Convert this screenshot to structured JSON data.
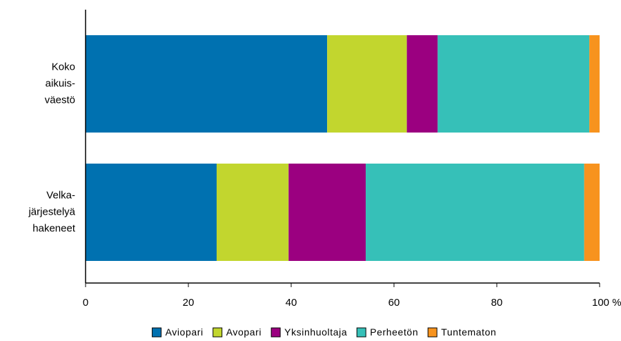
{
  "chart_data": {
    "type": "bar",
    "orientation": "horizontal",
    "stacked": true,
    "categories": [
      [
        "Koko",
        "aikuis-",
        "väestö"
      ],
      [
        "Velka-",
        "järjestelyä",
        "hakeneet"
      ]
    ],
    "series": [
      {
        "name": "Aviopari",
        "color": "#0071b0",
        "values": [
          47,
          25.5
        ]
      },
      {
        "name": "Avopari",
        "color": "#c2d62e",
        "values": [
          15.5,
          14
        ]
      },
      {
        "name": "Yksinhuoltaja",
        "color": "#9b0080",
        "values": [
          6,
          15
        ]
      },
      {
        "name": "Perheetön",
        "color": "#36c0b8",
        "values": [
          29.5,
          42.5
        ]
      },
      {
        "name": "Tuntematon",
        "color": "#f7931e",
        "values": [
          2,
          3
        ]
      }
    ],
    "xlim": [
      0,
      100
    ],
    "xticks": [
      0,
      20,
      40,
      60,
      80,
      100
    ],
    "xtick_labels": [
      "0",
      "20",
      "40",
      "60",
      "80",
      "100 %"
    ],
    "grid": false,
    "legend_position": "bottom"
  }
}
